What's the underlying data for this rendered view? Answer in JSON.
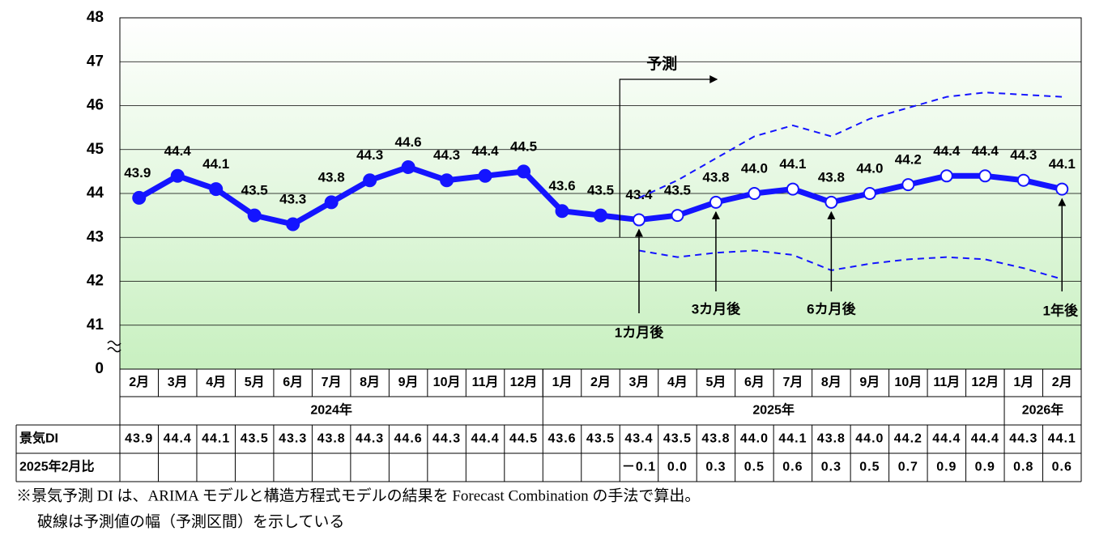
{
  "chart_data": {
    "type": "line",
    "categories": [
      "2月",
      "3月",
      "4月",
      "5月",
      "6月",
      "7月",
      "8月",
      "9月",
      "10月",
      "11月",
      "12月",
      "1月",
      "2月",
      "3月",
      "4月",
      "5月",
      "6月",
      "7月",
      "8月",
      "9月",
      "10月",
      "11月",
      "12月",
      "1月",
      "2月"
    ],
    "year_labels": [
      "2024年",
      "2025年",
      "2026年"
    ],
    "series": [
      {
        "color": "#1414ff",
        "style": "solid",
        "markers": true,
        "values": [
          43.9,
          44.4,
          44.1,
          43.5,
          43.3,
          43.8,
          44.3,
          44.6,
          44.3,
          44.4,
          44.5,
          43.6,
          43.5,
          43.4,
          43.5,
          43.8,
          44.0,
          44.1,
          43.8,
          44.0,
          44.2,
          44.4,
          44.4,
          44.3,
          44.1
        ],
        "value_labels": [
          "43.9",
          "44.4",
          "44.1",
          "43.5",
          "43.3",
          "43.8",
          "44.3",
          "44.6",
          "44.3",
          "44.4",
          "44.5",
          "43.6",
          "43.5",
          "43.4",
          "43.5",
          "43.8",
          "44.0",
          "44.1",
          "43.8",
          "44.0",
          "44.2",
          "44.4",
          "44.4",
          "44.3",
          "44.1"
        ],
        "forecast_start_index": 13
      },
      {
        "color": "#1414ff",
        "style": "dashed",
        "markers": false,
        "values": [
          null,
          null,
          null,
          null,
          null,
          null,
          null,
          null,
          null,
          null,
          null,
          null,
          null,
          43.9,
          44.3,
          44.8,
          45.3,
          45.55,
          45.3,
          45.7,
          45.95,
          46.2,
          46.3,
          46.25,
          46.2
        ]
      },
      {
        "color": "#1414ff",
        "style": "dashed",
        "markers": false,
        "values": [
          null,
          null,
          null,
          null,
          null,
          null,
          null,
          null,
          null,
          null,
          null,
          null,
          null,
          42.7,
          42.55,
          42.65,
          42.7,
          42.6,
          42.25,
          42.4,
          42.5,
          42.55,
          42.5,
          42.3,
          42.05
        ]
      }
    ],
    "ylim": [
      0,
      48
    ],
    "axis_break": [
      0,
      40
    ],
    "yticks": [
      0,
      41,
      42,
      43,
      44,
      45,
      46,
      47,
      48
    ],
    "grid": true,
    "forecast_label": "予測",
    "annotations": [
      "1カ月後",
      "3カ月後",
      "6カ月後",
      "1年後"
    ],
    "table": {
      "row_labels": [
        "景気DI",
        "2025年2月比"
      ],
      "diff": [
        null,
        null,
        null,
        null,
        null,
        null,
        null,
        null,
        null,
        null,
        null,
        null,
        null,
        "－0.1",
        "0.0",
        "0.3",
        "0.5",
        "0.6",
        "0.3",
        "0.5",
        "0.7",
        "0.9",
        "0.9",
        "0.8",
        "0.6"
      ]
    },
    "notes": [
      "※景気予測 DI は、ARIMA モデルと構造方程式モデルの結果を Forecast Combination の手法で算出。",
      "破線は予測値の幅（予測区間）を示している"
    ]
  }
}
